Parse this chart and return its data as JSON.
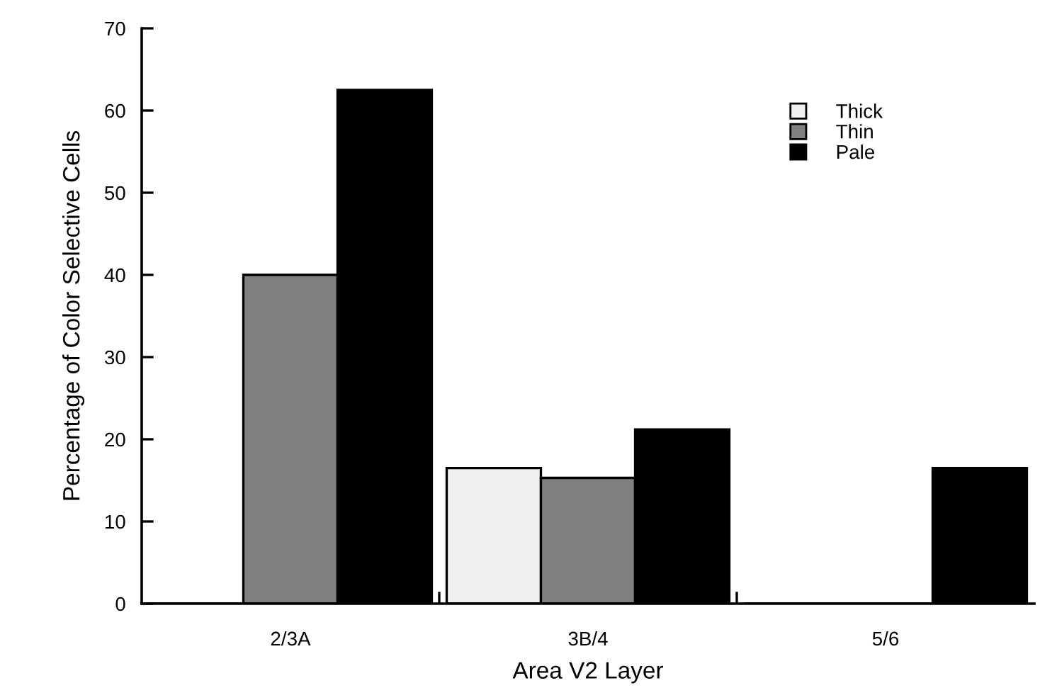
{
  "chart_data": {
    "type": "bar",
    "xlabel": "Area V2 Layer",
    "ylabel": "Percentage of Color Selective Cells",
    "categories": [
      "2/3A",
      "3B/4",
      "5/6"
    ],
    "series": [
      {
        "name": "Thick",
        "color": "#f0f0f0",
        "values": [
          0,
          16.5,
          0
        ]
      },
      {
        "name": "Thin",
        "color": "#808080",
        "values": [
          40,
          15.3,
          0
        ]
      },
      {
        "name": "Pale",
        "color": "#000000",
        "values": [
          62.5,
          21.2,
          16.5
        ]
      }
    ],
    "ylim": [
      0,
      70
    ],
    "yticks": [
      0,
      10,
      20,
      30,
      40,
      50,
      60,
      70
    ],
    "grid": false,
    "legend": "top right"
  }
}
